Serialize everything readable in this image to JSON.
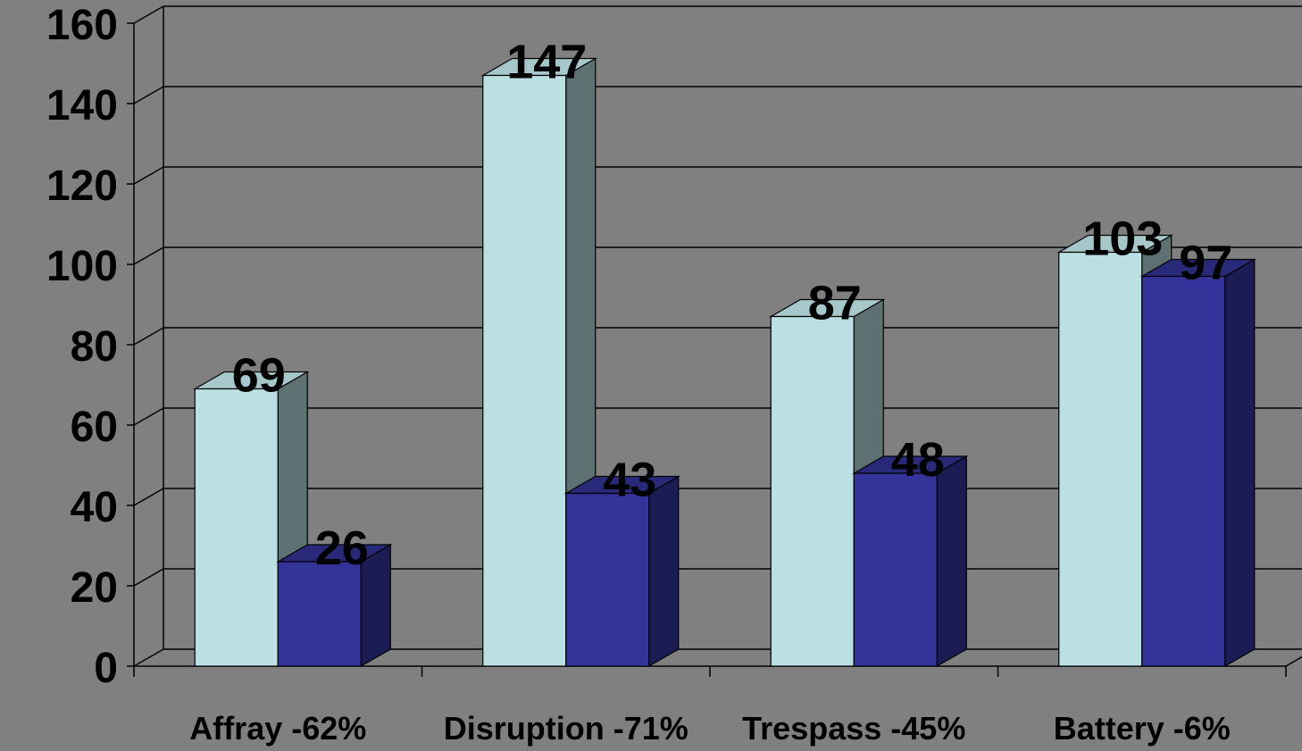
{
  "chart_data": {
    "type": "bar",
    "title": "",
    "xlabel": "",
    "ylabel": "",
    "categories": [
      "Affray -62%",
      "Disruption -71%",
      "Trespass -45%",
      "Battery -6%"
    ],
    "series": [
      {
        "values": [
          69,
          147,
          87,
          103
        ],
        "color": "#BBE0E3"
      },
      {
        "values": [
          26,
          43,
          48,
          97
        ],
        "color": "#333399"
      }
    ],
    "ylim": [
      0,
      160
    ],
    "y_ticks": [
      "0",
      "20",
      "40",
      "60",
      "80",
      "100",
      "120",
      "140",
      "160"
    ],
    "data_labels": true,
    "grid": true,
    "legend": "none",
    "style": "3d-clustered",
    "colors": {
      "background": "#808080",
      "gridline": "#000000",
      "text": "#000000"
    }
  }
}
